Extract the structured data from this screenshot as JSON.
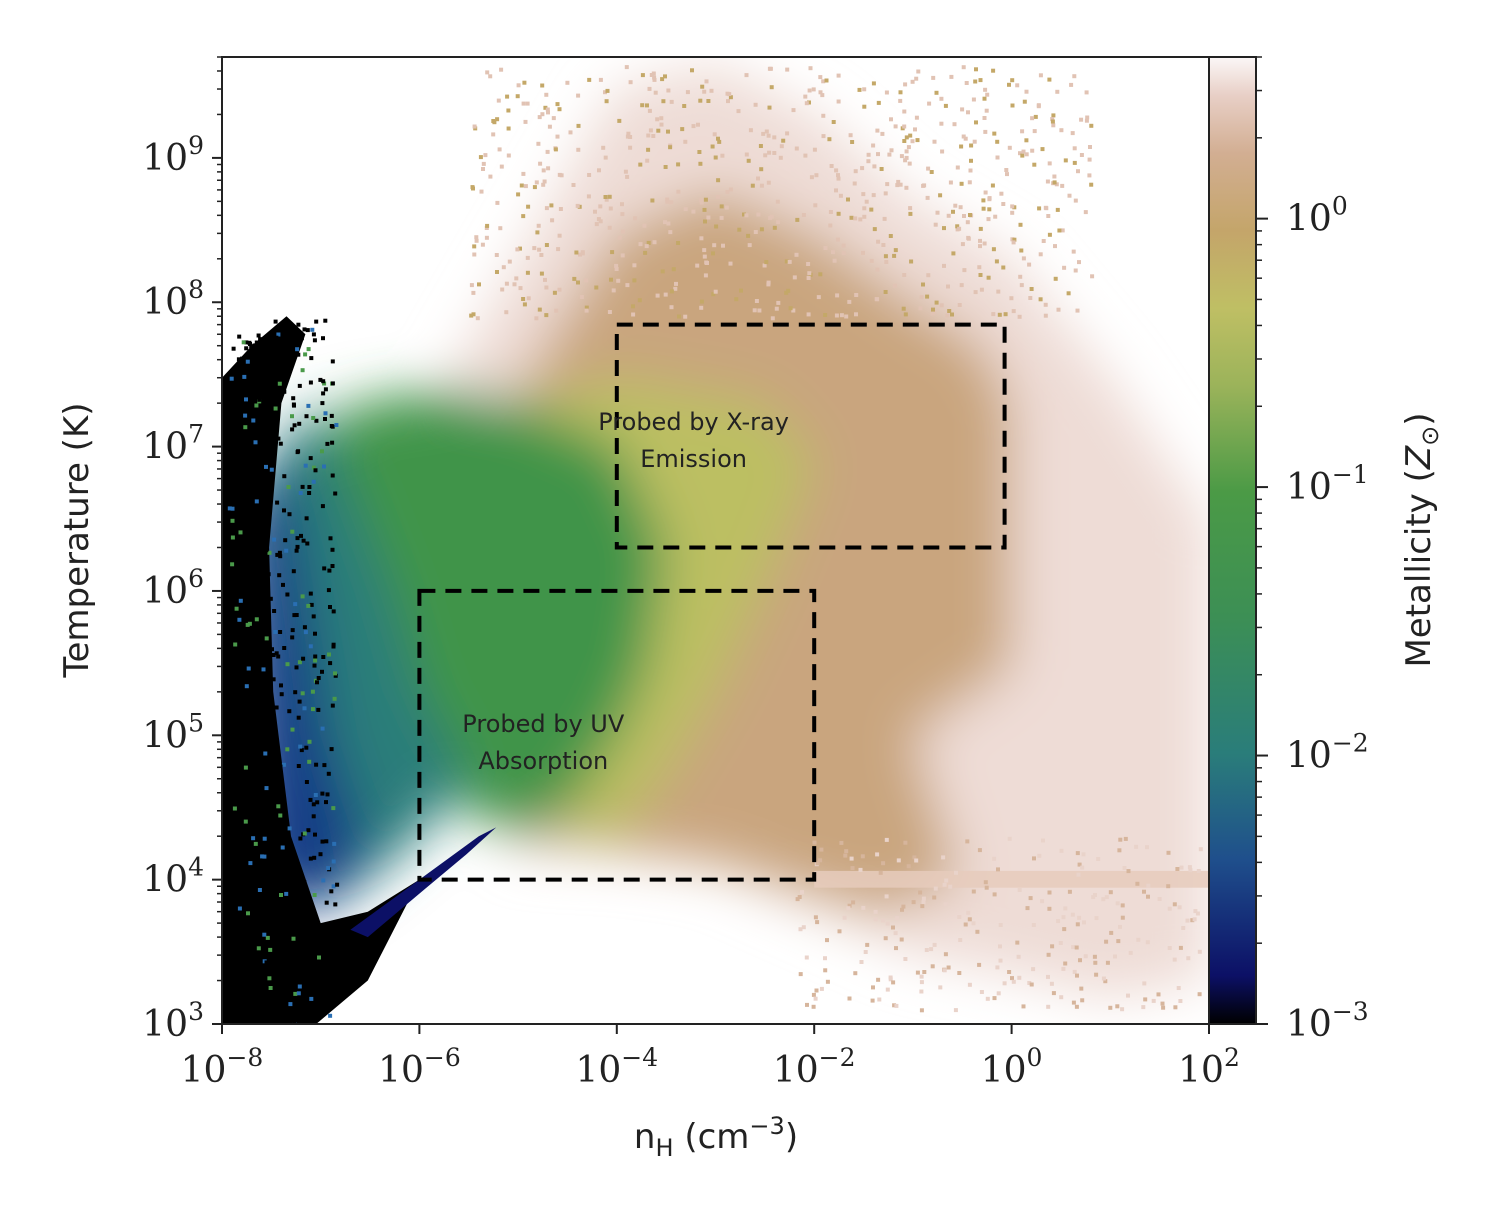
{
  "chart_data": {
    "type": "heatmap",
    "title": "",
    "x_axis": {
      "label_base": "n",
      "label_sub": "H",
      "label_unit": " (cm",
      "label_exp": "−3",
      "label_close": ")",
      "scale": "log",
      "range": [
        1e-08,
        100
      ],
      "ticks": [
        {
          "base": "10",
          "exp": "−8",
          "value": 1e-08
        },
        {
          "base": "10",
          "exp": "−6",
          "value": 1e-06
        },
        {
          "base": "10",
          "exp": "−4",
          "value": 0.0001
        },
        {
          "base": "10",
          "exp": "−2",
          "value": 0.01
        },
        {
          "base": "10",
          "exp": "0",
          "value": 1
        },
        {
          "base": "10",
          "exp": "2",
          "value": 100
        }
      ]
    },
    "y_axis": {
      "label": "Temperature (K)",
      "scale": "log",
      "range": [
        1000,
        5000000000
      ],
      "ticks": [
        {
          "base": "10",
          "exp": "3",
          "value": 1000.0
        },
        {
          "base": "10",
          "exp": "4",
          "value": 10000.0
        },
        {
          "base": "10",
          "exp": "5",
          "value": 100000.0
        },
        {
          "base": "10",
          "exp": "6",
          "value": 1000000.0
        },
        {
          "base": "10",
          "exp": "7",
          "value": 10000000.0
        },
        {
          "base": "10",
          "exp": "8",
          "value": 100000000.0
        },
        {
          "base": "10",
          "exp": "9",
          "value": 1000000000.0
        }
      ]
    },
    "colorbar": {
      "label_text": "Metallicity (",
      "label_symbol": "Z",
      "label_sub": "⊙",
      "label_close": ")",
      "scale": "log",
      "range": [
        0.001,
        4
      ],
      "colormap": "gist_earth",
      "ticks": [
        {
          "base": "10",
          "exp": "−3",
          "value": 0.001
        },
        {
          "base": "10",
          "exp": "−2",
          "value": 0.01
        },
        {
          "base": "10",
          "exp": "−1",
          "value": 0.1
        },
        {
          "base": "10",
          "exp": "0",
          "value": 1
        }
      ]
    },
    "regions": [
      {
        "label_lines": [
          "Probed by X-ray",
          "Emission"
        ],
        "x_range": [
          0.0001,
          0.85
        ],
        "y_range": [
          2000000.0,
          70000000.0
        ],
        "style": "dashed"
      },
      {
        "label_lines": [
          "Probed by UV",
          "Absorption"
        ],
        "x_range": [
          1e-06,
          0.01
        ],
        "y_range": [
          10000.0,
          1000000.0
        ],
        "style": "dashed"
      }
    ],
    "grid": false,
    "colors": {
      "low_metallicity": "#000000",
      "mid_low": "#2a7d7a",
      "mid": "#3f9448",
      "mid_high": "#bcbf62",
      "high": "#c9a57e",
      "very_high": "#eedcd6"
    }
  }
}
